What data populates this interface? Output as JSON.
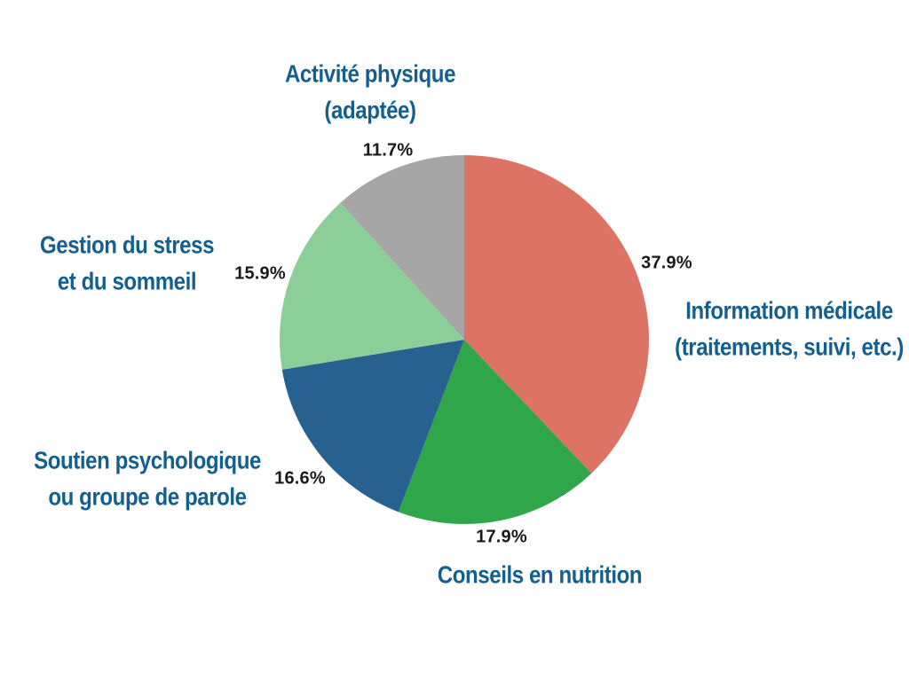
{
  "chart_data": {
    "type": "pie",
    "title": "",
    "start_angle_deg": 0,
    "direction": "clockwise",
    "legend": "none",
    "slices": [
      {
        "name": "information-medicale",
        "label_lines": [
          "Information médicale",
          "(traitements, suivi, etc.)"
        ],
        "value_pct": 37.9,
        "pct_label": "37.9%",
        "color": "#DC7365"
      },
      {
        "name": "conseils-nutrition",
        "label_lines": [
          "Conseils en nutrition"
        ],
        "value_pct": 17.9,
        "pct_label": "17.9%",
        "color": "#2FA64A"
      },
      {
        "name": "soutien-psychologique",
        "label_lines": [
          "Soutien psychologique",
          "ou groupe de parole"
        ],
        "value_pct": 16.6,
        "pct_label": "16.6%",
        "color": "#26618F"
      },
      {
        "name": "gestion-stress",
        "label_lines": [
          "Gestion du stress",
          "et du sommeil"
        ],
        "value_pct": 15.9,
        "pct_label": "15.9%",
        "color": "#8BCE97"
      },
      {
        "name": "activite-physique",
        "label_lines": [
          "Activité physique",
          "(adaptée)"
        ],
        "value_pct": 11.7,
        "pct_label": "11.7%",
        "color": "#A6A6A6"
      }
    ]
  },
  "styles": {
    "category_label_color": "#135F8E",
    "pct_label_color": "#1A1A1A",
    "background": "#FFFFFF"
  }
}
